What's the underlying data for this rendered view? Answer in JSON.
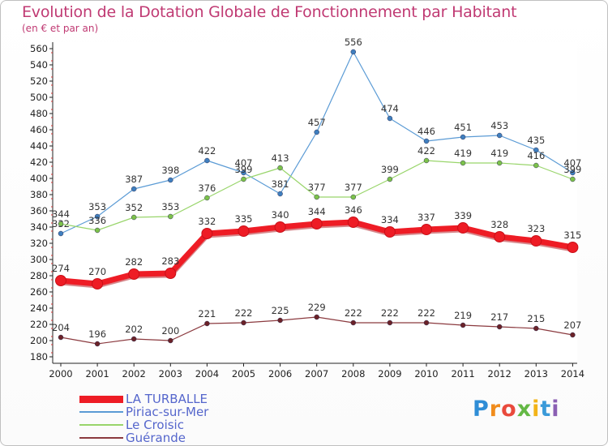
{
  "title": "Evolution de la Dotation Globale de Fonctionnement par Habitant",
  "subtitle": "(en € et par an)",
  "logo": {
    "letters": [
      "P",
      "r",
      "o",
      "x",
      "i",
      "t",
      "i"
    ],
    "colors": [
      "#2f8dd6",
      "#f08c1c",
      "#e94a3c",
      "#64b845",
      "#f2b418",
      "#3a9ad9",
      "#8b5fb3"
    ]
  },
  "chart_data": {
    "type": "line",
    "x": [
      "2000",
      "2001",
      "2002",
      "2003",
      "2004",
      "2005",
      "2006",
      "2007",
      "2008",
      "2009",
      "2010",
      "2011",
      "2012",
      "2013",
      "2014"
    ],
    "ylim": [
      180,
      560
    ],
    "yticks": [
      180,
      200,
      220,
      240,
      260,
      280,
      300,
      320,
      340,
      360,
      380,
      400,
      420,
      440,
      460,
      480,
      500,
      520,
      540,
      560
    ],
    "grid": false,
    "legend_position": "bottom-left",
    "series": [
      {
        "name": "Piriac-sur-Mer",
        "color": "#5b9bd5",
        "marker": "#3f7fbf",
        "width": 1.2,
        "radius": 3,
        "values": [
          332,
          353,
          387,
          398,
          422,
          407,
          381,
          457,
          556,
          474,
          446,
          451,
          453,
          435,
          407
        ]
      },
      {
        "name": "Le Croisic",
        "color": "#99d56b",
        "marker": "#7cc24a",
        "width": 1.2,
        "radius": 3,
        "values": [
          344,
          336,
          352,
          353,
          376,
          399,
          413,
          377,
          377,
          399,
          422,
          419,
          419,
          416,
          399
        ]
      },
      {
        "name": "Guérande",
        "color": "#8b3a3f",
        "marker": "#6b2228",
        "width": 1.2,
        "radius": 3,
        "values": [
          204,
          196,
          202,
          200,
          221,
          222,
          225,
          229,
          222,
          222,
          222,
          219,
          217,
          215,
          207
        ]
      },
      {
        "name": "LA TURBALLE",
        "color": "#ee1c25",
        "marker": "#ee1c25",
        "width": 7,
        "radius": 6.5,
        "values": [
          274,
          270,
          282,
          283,
          332,
          335,
          340,
          344,
          346,
          334,
          337,
          339,
          328,
          323,
          315
        ]
      }
    ],
    "legend_order": [
      "LA TURBALLE",
      "Piriac-sur-Mer",
      "Le Croisic",
      "Guérande"
    ]
  }
}
